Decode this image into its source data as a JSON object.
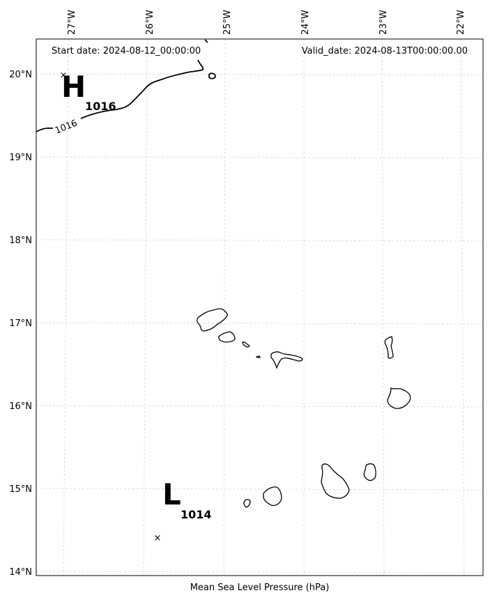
{
  "header": {
    "start_date": "Start date: 2024-08-12_00:00:00",
    "valid_date": "Valid_date: 2024-08-13T00:00:00.00"
  },
  "caption": "Mean Sea Level Pressure (hPa)",
  "longitude_labels": [
    "27°W",
    "26°W",
    "25°W",
    "24°W",
    "23°W",
    "22°W"
  ],
  "latitude_labels": [
    "20°N",
    "19°N",
    "18°N",
    "17°N",
    "16°N",
    "15°N",
    "14°N"
  ],
  "isobar_label": "1016",
  "pressure_systems": [
    {
      "letter": "H",
      "value": "1016"
    },
    {
      "letter": "L",
      "value": "1014"
    }
  ],
  "colors": {
    "coastline": "#000000",
    "gridline": "#cccccc",
    "isobar": "#000000"
  }
}
